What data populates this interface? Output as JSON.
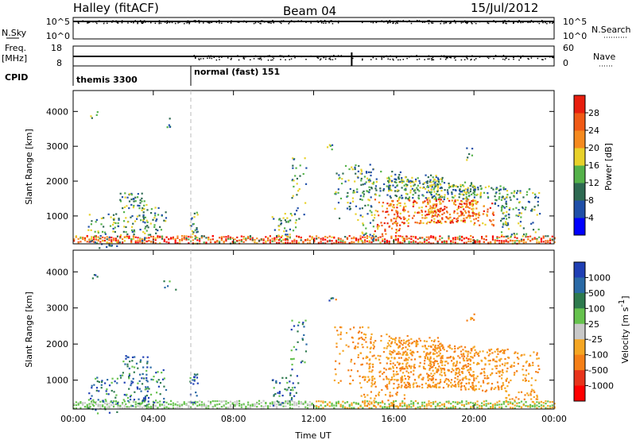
{
  "header": {
    "station": "Halley (fitACF)",
    "beam": "Beam 04",
    "date": "15/Jul/2012"
  },
  "top_panels": {
    "left_labels": [
      "N.Sky",
      "Freq.",
      "[MHz]",
      "CPID"
    ],
    "right_labels": [
      "N.Search",
      "Nave"
    ],
    "nsky_ticks": [
      "10^5",
      "10^0"
    ],
    "nsearch_ticks": [
      "10^5",
      "10^0"
    ],
    "freq_ticks": [
      "18",
      "8"
    ],
    "nave_ticks": [
      "60",
      "0"
    ],
    "cpid_segments": [
      {
        "label": "themis 3300",
        "start_hour": 0.0
      },
      {
        "label": "normal (fast) 151",
        "start_hour": 6.0
      }
    ]
  },
  "colors": {
    "power": [
      "#0000ff",
      "#1f4fa8",
      "#2e6a52",
      "#55b24a",
      "#e8d12a",
      "#f58a1f",
      "#f05a16",
      "#e81e0e",
      "#ff0000"
    ],
    "velocity": [
      "#1f3fb4",
      "#2a6aa6",
      "#2e7a4e",
      "#66c24e",
      "#c8c8c8",
      "#f5a623",
      "#f57f17",
      "#e8341b",
      "#ff0000"
    ]
  },
  "chart_data": [
    {
      "type": "heatmap",
      "name": "power",
      "xlabel": "",
      "ylabel": "Slant Range [km]",
      "x_ticks": [
        "00:00",
        "04:00",
        "08:00",
        "12:00",
        "16:00",
        "20:00",
        "00:00"
      ],
      "xlim": [
        0,
        24
      ],
      "ylim": [
        200,
        4600
      ],
      "y_ticks": [
        1000,
        2000,
        3000,
        4000
      ],
      "colorbar": {
        "label": "Power [dB]",
        "ticks": [
          "4",
          "8",
          "12",
          "16",
          "20",
          "24",
          "28"
        ],
        "range": [
          0,
          30
        ]
      }
    },
    {
      "type": "heatmap",
      "name": "velocity",
      "xlabel": "Time UT",
      "ylabel": "Slant Range [km]",
      "x_ticks": [
        "00:00",
        "04:00",
        "08:00",
        "12:00",
        "16:00",
        "20:00",
        "00:00"
      ],
      "xlim": [
        0,
        24
      ],
      "ylim": [
        200,
        4600
      ],
      "y_ticks": [
        1000,
        2000,
        3000,
        4000
      ],
      "colorbar": {
        "label": "Velocity [m s",
        "label_sup": "-1",
        "label_end": "]",
        "ticks": [
          "1000",
          "500",
          "100",
          "25",
          "-25",
          "-100",
          "-500",
          "-1000"
        ]
      }
    }
  ]
}
